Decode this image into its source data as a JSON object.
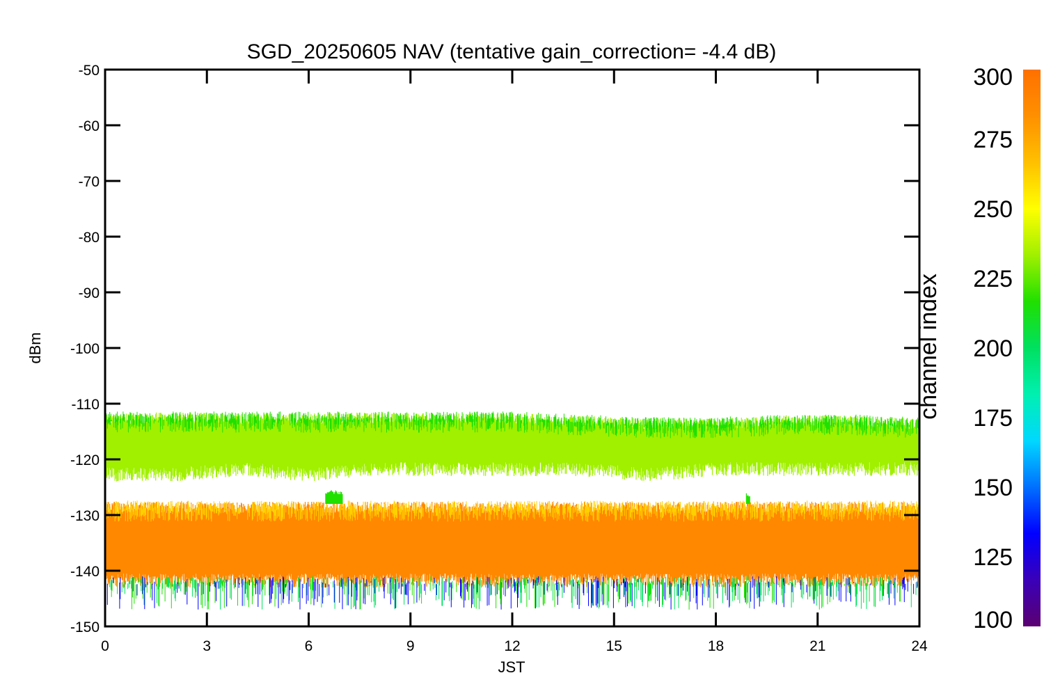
{
  "chart_data": {
    "type": "line",
    "title": "SGD_20250605 NAV (tentative gain_correction= -4.4 dB)",
    "xlabel": "JST",
    "ylabel": "dBm",
    "xlim": [
      0,
      24
    ],
    "ylim": [
      -150,
      -50
    ],
    "xticks": [
      "0",
      "3",
      "6",
      "9",
      "12",
      "15",
      "18",
      "21",
      "24"
    ],
    "yticks": [
      "-50",
      "-60",
      "-70",
      "-80",
      "-90",
      "-100",
      "-110",
      "-120",
      "-130",
      "-140",
      "-150"
    ],
    "grid": false,
    "legend": "none",
    "colorbar": {
      "label": "channel index",
      "range": [
        100,
        300
      ],
      "ticks": [
        "300",
        "275",
        "250",
        "225",
        "200",
        "175",
        "150",
        "125",
        "100"
      ],
      "colormap": [
        "#5b0070",
        "#3a00b8",
        "#0000ff",
        "#0070ff",
        "#00d8ff",
        "#00f0b0",
        "#00e060",
        "#20e000",
        "#a0f000",
        "#ffff00",
        "#ffc000",
        "#ff9000",
        "#ff7000"
      ]
    },
    "series": [
      {
        "x": [
          0,
          2,
          4,
          6,
          8,
          10,
          12,
          14,
          16,
          18,
          20,
          22,
          24
        ],
        "y_center": [
          -116.0,
          -116.2,
          -116.0,
          -116.3,
          -116.0,
          -116.2,
          -116.4,
          -116.6,
          -116.8,
          -116.6,
          -116.4,
          -116.3,
          -116.5
        ],
        "y_upper": [
          -113,
          -113,
          -113,
          -113,
          -113,
          -113,
          -113,
          -113.5,
          -114,
          -114,
          -113.5,
          -113.5,
          -114
        ],
        "y_lower": [
          -122,
          -122,
          -121,
          -122,
          -121,
          -121,
          -121,
          -121,
          -122,
          -121,
          -121,
          -121,
          -121
        ],
        "color": "#a0f000",
        "edge_color": "#20e000"
      },
      {
        "x": [
          0,
          2,
          4,
          6,
          8,
          10,
          12,
          14,
          16,
          18,
          20,
          22,
          24
        ],
        "y_center": [
          -134.5,
          -134.5,
          -134.5,
          -134.5,
          -134.5,
          -134.5,
          -134.5,
          -134.5,
          -134.5,
          -134.5,
          -134.5,
          -134.5,
          -134.5
        ],
        "y_upper": [
          -129,
          -129,
          -129,
          -129,
          -129,
          -129,
          -129,
          -129,
          -129,
          -129,
          -129,
          -129,
          -129
        ],
        "y_lower": [
          -141,
          -141,
          -141,
          -141,
          -141,
          -141,
          -141,
          -141,
          -141,
          -141,
          -141,
          -141,
          -141
        ],
        "color": "#ff8800",
        "edge_color": "#ffd000",
        "tail_colors": [
          "#00e060",
          "#0000ff",
          "#20e000"
        ]
      }
    ],
    "annotations": [
      {
        "x_range": [
          6.5,
          7.0
        ],
        "y_range": [
          -128,
          -125.5
        ],
        "color": "#20e000"
      },
      {
        "x_range": [
          18.9,
          19.0
        ],
        "y_range": [
          -128,
          -126
        ],
        "color": "#20e000"
      }
    ]
  }
}
